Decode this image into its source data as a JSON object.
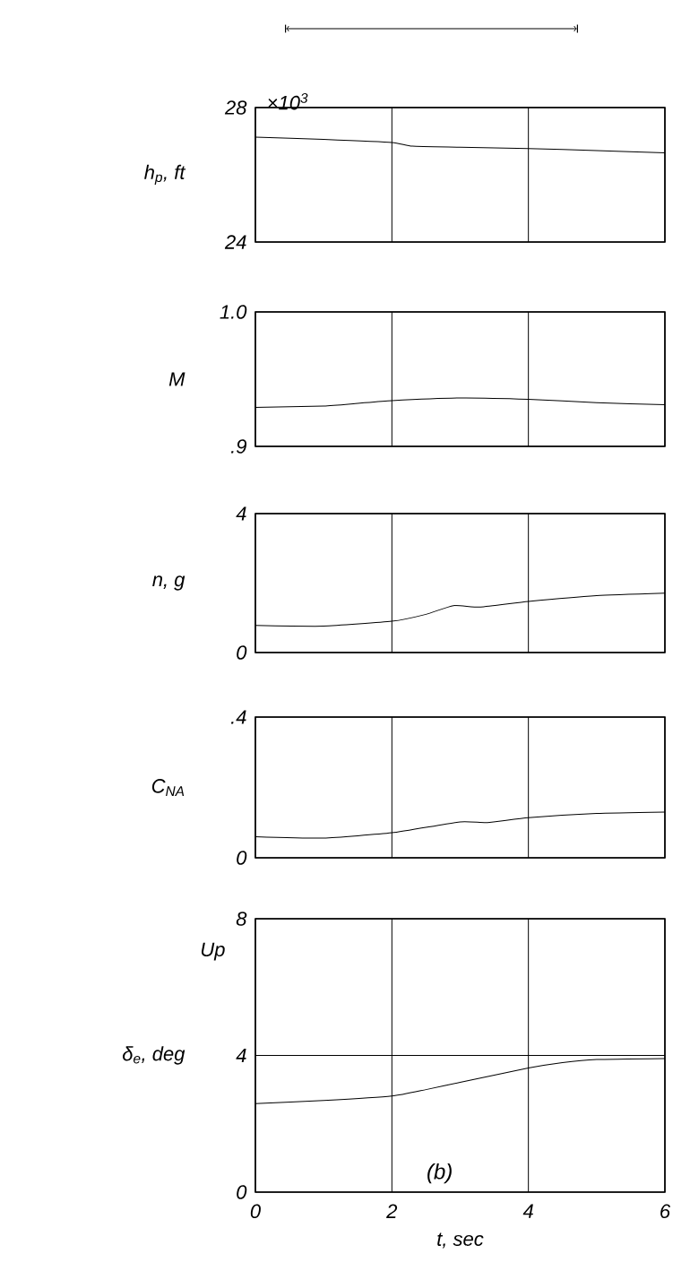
{
  "chart_data": [
    {
      "type": "line",
      "ylabel": "h$_{p}$, ft",
      "x": [
        0,
        1,
        2,
        2.3,
        3,
        4,
        5,
        6
      ],
      "xlim": [
        0,
        6
      ],
      "xticks": [
        0,
        2,
        4,
        6
      ],
      "ylim": [
        24,
        28
      ],
      "yticks": [
        24,
        28
      ],
      "grid": true,
      "tick_labels": "y",
      "series": [
        {
          "color": "#000000",
          "values": [
            27.12,
            27.05,
            26.96,
            26.85,
            26.82,
            26.78,
            26.72,
            26.65
          ]
        }
      ],
      "annotations": [
        "×10$^{3}$"
      ]
    },
    {
      "type": "line",
      "ylabel": "M",
      "x": [
        0,
        1,
        1.5,
        2,
        3,
        4,
        5,
        6
      ],
      "xlim": [
        0,
        6
      ],
      "xticks": [
        0,
        2,
        4,
        6
      ],
      "ylim": [
        0.9,
        1.0
      ],
      "yticks": [
        {
          "value": 0.9,
          "label": ".9"
        },
        {
          "value": 1.0,
          "label": "1.0"
        }
      ],
      "grid": true,
      "tick_labels": "y",
      "series": [
        {
          "color": "#000000",
          "values": [
            0.929,
            0.93,
            0.932,
            0.934,
            0.936,
            0.935,
            0.9325,
            0.931
          ]
        }
      ]
    },
    {
      "type": "line",
      "ylabel": "n, g",
      "x": [
        0,
        1,
        2,
        2.5,
        2.9,
        3.3,
        4,
        5,
        6
      ],
      "xlim": [
        0,
        6
      ],
      "xticks": [
        0,
        2,
        4,
        6
      ],
      "ylim": [
        0,
        4
      ],
      "yticks": [
        0,
        4
      ],
      "grid": true,
      "tick_labels": "y",
      "series": [
        {
          "color": "#000000",
          "values": [
            0.78,
            0.76,
            0.9,
            1.1,
            1.35,
            1.31,
            1.47,
            1.64,
            1.71
          ]
        }
      ]
    },
    {
      "type": "line",
      "ylabel": "C$_{NA}$",
      "x": [
        0,
        1,
        2,
        3,
        3.4,
        4,
        5,
        6
      ],
      "xlim": [
        0,
        6
      ],
      "xticks": [
        0,
        2,
        4,
        6
      ],
      "ylim": [
        0,
        0.4
      ],
      "yticks": [
        0,
        {
          "value": 0.4,
          "label": ".4"
        }
      ],
      "grid": true,
      "tick_labels": "y",
      "series": [
        {
          "color": "#000000",
          "values": [
            0.06,
            0.056,
            0.071,
            0.102,
            0.1,
            0.114,
            0.126,
            0.13
          ]
        }
      ]
    },
    {
      "type": "line",
      "ylabel": "δ$_{e}$, deg",
      "xlabel": "t, sec",
      "x": [
        0,
        1,
        2,
        2.5,
        3,
        4,
        4.5,
        5,
        6
      ],
      "xlim": [
        0,
        6
      ],
      "xticks": [
        0,
        2,
        4,
        6
      ],
      "ylim": [
        0,
        8
      ],
      "yticks": [
        0,
        4,
        8
      ],
      "grid": true,
      "series": [
        {
          "color": "#000000",
          "values": [
            2.59,
            2.68,
            2.81,
            3.0,
            3.21,
            3.63,
            3.79,
            3.88,
            3.91
          ]
        }
      ],
      "annotations": [
        "Up",
        "(b)"
      ]
    }
  ]
}
